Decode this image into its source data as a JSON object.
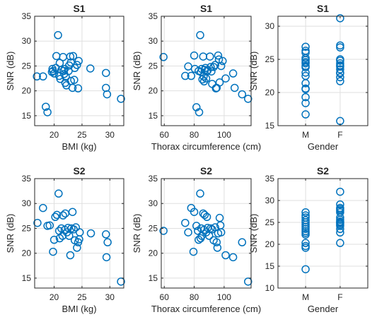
{
  "chart_data": [
    {
      "type": "scatter",
      "title": "S1",
      "xlabel": "BMI (kg)",
      "ylabel": "SNR (dB)",
      "xlim": [
        16.5,
        32.5
      ],
      "ylim": [
        13,
        35
      ],
      "xticks": [
        20,
        25,
        30
      ],
      "yticks": [
        15,
        20,
        25,
        30,
        35
      ],
      "grid": true,
      "marker_color": "#0072BD",
      "points": [
        {
          "x": 16.9,
          "y": 22.9
        },
        {
          "x": 18.0,
          "y": 22.9
        },
        {
          "x": 18.5,
          "y": 16.8
        },
        {
          "x": 18.8,
          "y": 15.7
        },
        {
          "x": 19.6,
          "y": 23.8
        },
        {
          "x": 19.7,
          "y": 24.4
        },
        {
          "x": 19.8,
          "y": 24.0
        },
        {
          "x": 20.0,
          "y": 23.5
        },
        {
          "x": 20.3,
          "y": 24.6
        },
        {
          "x": 20.4,
          "y": 27.0
        },
        {
          "x": 20.7,
          "y": 31.2
        },
        {
          "x": 20.9,
          "y": 23.0
        },
        {
          "x": 21.0,
          "y": 25.6
        },
        {
          "x": 21.1,
          "y": 22.4
        },
        {
          "x": 21.3,
          "y": 24.2
        },
        {
          "x": 21.6,
          "y": 26.8
        },
        {
          "x": 21.7,
          "y": 24.0
        },
        {
          "x": 21.8,
          "y": 23.4
        },
        {
          "x": 21.9,
          "y": 24.4
        },
        {
          "x": 22.0,
          "y": 21.6
        },
        {
          "x": 22.1,
          "y": 22.8
        },
        {
          "x": 22.2,
          "y": 21.1
        },
        {
          "x": 22.6,
          "y": 24.0
        },
        {
          "x": 22.7,
          "y": 25.1
        },
        {
          "x": 22.9,
          "y": 26.9
        },
        {
          "x": 23.0,
          "y": 25.7
        },
        {
          "x": 23.0,
          "y": 22.0
        },
        {
          "x": 23.3,
          "y": 20.6
        },
        {
          "x": 23.4,
          "y": 27.0
        },
        {
          "x": 23.6,
          "y": 22.2
        },
        {
          "x": 23.7,
          "y": 24.6
        },
        {
          "x": 24.1,
          "y": 25.2
        },
        {
          "x": 24.3,
          "y": 20.5
        },
        {
          "x": 24.4,
          "y": 26.0
        },
        {
          "x": 26.5,
          "y": 24.5
        },
        {
          "x": 29.3,
          "y": 23.6
        },
        {
          "x": 29.3,
          "y": 20.6
        },
        {
          "x": 29.5,
          "y": 19.3
        },
        {
          "x": 32.0,
          "y": 18.4
        }
      ]
    },
    {
      "type": "scatter",
      "title": "S1",
      "xlabel": "Thorax circumference (cm)",
      "ylabel": "SNR (dB)",
      "xlim": [
        58,
        118
      ],
      "ylim": [
        13,
        35
      ],
      "xticks": [
        60,
        80,
        100
      ],
      "yticks": [
        15,
        20,
        25,
        30,
        35
      ],
      "grid": true,
      "marker_color": "#0072BD",
      "points": [
        {
          "x": 59.5,
          "y": 26.8
        },
        {
          "x": 74.0,
          "y": 23.0
        },
        {
          "x": 76.0,
          "y": 24.9
        },
        {
          "x": 78.0,
          "y": 23.0
        },
        {
          "x": 80.0,
          "y": 27.1
        },
        {
          "x": 80.5,
          "y": 24.4
        },
        {
          "x": 81.5,
          "y": 16.7
        },
        {
          "x": 83.0,
          "y": 24.0
        },
        {
          "x": 83.3,
          "y": 15.7
        },
        {
          "x": 84.0,
          "y": 31.2
        },
        {
          "x": 84.5,
          "y": 23.8
        },
        {
          "x": 85.0,
          "y": 24.4
        },
        {
          "x": 85.5,
          "y": 22.3
        },
        {
          "x": 86.0,
          "y": 26.9
        },
        {
          "x": 86.3,
          "y": 22.9
        },
        {
          "x": 86.6,
          "y": 21.9
        },
        {
          "x": 87.0,
          "y": 24.2
        },
        {
          "x": 87.5,
          "y": 24.6
        },
        {
          "x": 88.0,
          "y": 22.5
        },
        {
          "x": 88.4,
          "y": 23.9
        },
        {
          "x": 89.0,
          "y": 24.1
        },
        {
          "x": 90.5,
          "y": 26.9
        },
        {
          "x": 91.0,
          "y": 24.8
        },
        {
          "x": 91.5,
          "y": 23.9
        },
        {
          "x": 92.0,
          "y": 21.4
        },
        {
          "x": 93.0,
          "y": 24.8
        },
        {
          "x": 94.0,
          "y": 25.2
        },
        {
          "x": 94.5,
          "y": 20.5
        },
        {
          "x": 95.0,
          "y": 20.6
        },
        {
          "x": 96.0,
          "y": 27.1
        },
        {
          "x": 96.5,
          "y": 26.3
        },
        {
          "x": 97.0,
          "y": 21.7
        },
        {
          "x": 98.0,
          "y": 25.0
        },
        {
          "x": 99.0,
          "y": 26.0
        },
        {
          "x": 101.0,
          "y": 22.5
        },
        {
          "x": 106.0,
          "y": 23.5
        },
        {
          "x": 107.0,
          "y": 20.6
        },
        {
          "x": 112.0,
          "y": 19.3
        },
        {
          "x": 116.0,
          "y": 18.4
        }
      ]
    },
    {
      "type": "scatter",
      "title": "S1",
      "xlabel": "Gender",
      "ylabel": "SNR (dB)",
      "categories": [
        "M",
        "F"
      ],
      "xlim": [
        0.2,
        2.8
      ],
      "ylim": [
        15,
        31.5
      ],
      "yticks": [
        15,
        20,
        25,
        30
      ],
      "grid": true,
      "marker_color": "#0072BD",
      "series": [
        {
          "category": "M",
          "values": [
            16.7,
            18.4,
            19.3,
            20.5,
            20.6,
            21.4,
            22.5,
            23.0,
            23.8,
            24.0,
            24.4,
            24.6,
            24.9,
            25.2,
            26.0,
            26.3,
            26.9
          ]
        },
        {
          "category": "F",
          "values": [
            15.7,
            21.7,
            22.3,
            22.9,
            23.0,
            23.5,
            23.9,
            24.1,
            24.4,
            24.8,
            25.0,
            26.8,
            27.1,
            31.2
          ]
        }
      ]
    },
    {
      "type": "scatter",
      "title": "S2",
      "xlabel": "BMI (kg)",
      "ylabel": "SNR (dB)",
      "xlim": [
        16.5,
        32.5
      ],
      "ylim": [
        13,
        35
      ],
      "xticks": [
        20,
        25,
        30
      ],
      "yticks": [
        15,
        20,
        25,
        30,
        35
      ],
      "grid": true,
      "marker_color": "#0072BD",
      "points": [
        {
          "x": 17.0,
          "y": 26.1
        },
        {
          "x": 18.0,
          "y": 29.1
        },
        {
          "x": 18.8,
          "y": 25.5
        },
        {
          "x": 19.2,
          "y": 25.6
        },
        {
          "x": 19.8,
          "y": 20.3
        },
        {
          "x": 20.0,
          "y": 22.7
        },
        {
          "x": 20.2,
          "y": 27.3
        },
        {
          "x": 20.5,
          "y": 27.7
        },
        {
          "x": 20.8,
          "y": 32.0
        },
        {
          "x": 20.9,
          "y": 24.5
        },
        {
          "x": 21.0,
          "y": 23.0
        },
        {
          "x": 21.3,
          "y": 25.0
        },
        {
          "x": 21.5,
          "y": 23.5
        },
        {
          "x": 21.6,
          "y": 27.6
        },
        {
          "x": 21.9,
          "y": 24.7
        },
        {
          "x": 22.0,
          "y": 28.0
        },
        {
          "x": 22.3,
          "y": 24.2
        },
        {
          "x": 22.5,
          "y": 25.1
        },
        {
          "x": 22.7,
          "y": 23.5
        },
        {
          "x": 22.9,
          "y": 19.6
        },
        {
          "x": 23.1,
          "y": 25.0
        },
        {
          "x": 23.3,
          "y": 28.3
        },
        {
          "x": 23.5,
          "y": 24.8
        },
        {
          "x": 23.7,
          "y": 22.6
        },
        {
          "x": 23.9,
          "y": 25.2
        },
        {
          "x": 24.1,
          "y": 21.1
        },
        {
          "x": 24.3,
          "y": 22.2
        },
        {
          "x": 24.5,
          "y": 22.8
        },
        {
          "x": 24.6,
          "y": 24.2
        },
        {
          "x": 26.6,
          "y": 24.0
        },
        {
          "x": 29.3,
          "y": 23.8
        },
        {
          "x": 29.4,
          "y": 19.2
        },
        {
          "x": 29.6,
          "y": 22.2
        },
        {
          "x": 32.0,
          "y": 14.3
        }
      ]
    },
    {
      "type": "scatter",
      "title": "S2",
      "xlabel": "Thorax circumference (cm)",
      "ylabel": "SNR (dB)",
      "xlim": [
        58,
        118
      ],
      "ylim": [
        13,
        35
      ],
      "xticks": [
        60,
        80,
        100
      ],
      "yticks": [
        15,
        20,
        25,
        30,
        35
      ],
      "grid": true,
      "marker_color": "#0072BD",
      "points": [
        {
          "x": 59.5,
          "y": 24.5
        },
        {
          "x": 74.0,
          "y": 26.1
        },
        {
          "x": 76.0,
          "y": 24.2
        },
        {
          "x": 78.0,
          "y": 29.1
        },
        {
          "x": 79.5,
          "y": 20.3
        },
        {
          "x": 80.0,
          "y": 28.3
        },
        {
          "x": 81.5,
          "y": 25.5
        },
        {
          "x": 82.5,
          "y": 24.5
        },
        {
          "x": 83.0,
          "y": 22.7
        },
        {
          "x": 84.0,
          "y": 32.0
        },
        {
          "x": 84.3,
          "y": 23.0
        },
        {
          "x": 84.7,
          "y": 25.0
        },
        {
          "x": 85.0,
          "y": 23.5
        },
        {
          "x": 86.0,
          "y": 28.0
        },
        {
          "x": 86.5,
          "y": 24.7
        },
        {
          "x": 87.0,
          "y": 27.7
        },
        {
          "x": 88.0,
          "y": 24.2
        },
        {
          "x": 88.5,
          "y": 27.3
        },
        {
          "x": 89.0,
          "y": 25.1
        },
        {
          "x": 90.0,
          "y": 23.5
        },
        {
          "x": 91.0,
          "y": 25.0
        },
        {
          "x": 92.0,
          "y": 24.8
        },
        {
          "x": 93.0,
          "y": 22.6
        },
        {
          "x": 94.0,
          "y": 25.2
        },
        {
          "x": 95.0,
          "y": 22.2
        },
        {
          "x": 95.5,
          "y": 21.1
        },
        {
          "x": 96.0,
          "y": 24.0
        },
        {
          "x": 97.0,
          "y": 27.1
        },
        {
          "x": 97.5,
          "y": 25.6
        },
        {
          "x": 98.0,
          "y": 24.2
        },
        {
          "x": 101.0,
          "y": 19.6
        },
        {
          "x": 106.0,
          "y": 19.2
        },
        {
          "x": 112.0,
          "y": 22.2
        },
        {
          "x": 116.0,
          "y": 14.3
        }
      ]
    },
    {
      "type": "scatter",
      "title": "S2",
      "xlabel": "Gender",
      "ylabel": "SNR (dB)",
      "categories": [
        "M",
        "F"
      ],
      "xlim": [
        0.2,
        2.8
      ],
      "ylim": [
        10,
        35
      ],
      "yticks": [
        10,
        15,
        20,
        25,
        30,
        35
      ],
      "grid": true,
      "marker_color": "#0072BD",
      "series": [
        {
          "category": "M",
          "values": [
            14.3,
            19.2,
            19.6,
            20.3,
            22.2,
            22.6,
            23.0,
            23.5,
            24.0,
            24.5,
            25.0,
            25.5,
            26.1,
            26.6,
            27.3
          ]
        },
        {
          "category": "F",
          "values": [
            20.3,
            22.7,
            23.5,
            24.2,
            24.5,
            24.8,
            25.0,
            25.2,
            25.6,
            26.1,
            27.3,
            27.7,
            28.0,
            28.3,
            29.1,
            32.0
          ]
        }
      ]
    }
  ]
}
